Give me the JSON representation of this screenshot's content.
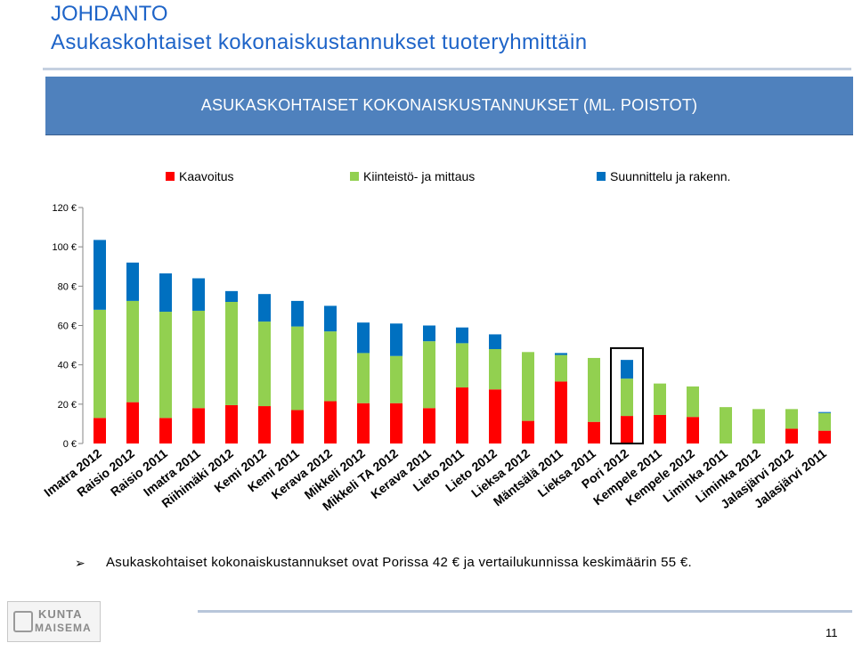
{
  "slide": {
    "title_line1": "JOHDANTO",
    "title_line2": "Asukaskohtaiset kokonaiskustannukset tuoteryhmittäin",
    "bullet": "Asukaskohtaiset kokonaiskustannukset ovat Porissa 42 € ja vertailukunnissa keskimäärin 55 €.",
    "bullet_marker": "➢",
    "logo_text_1": "KUNTA",
    "logo_text_2": "MAISEMA",
    "page_number": "11"
  },
  "chart_data": {
    "type": "bar",
    "stacked": true,
    "title": "ASUKASKOHTAISET KOKONAISKUSTANNUKSET (ML. POISTOT)",
    "categories": [
      "Imatra 2012",
      "Raisio 2012",
      "Raisio 2011",
      "Imatra 2011",
      "Riihimäki 2012",
      "Kemi 2012",
      "Kemi 2011",
      "Kerava 2012",
      "Mikkeli 2012",
      "Mikkeli TA 2012",
      "Kerava 2011",
      "Lieto 2011",
      "Lieto 2012",
      "Lieksa 2012",
      "Mäntsälä 2011",
      "Lieksa 2011",
      "Pori 2012",
      "Kempele 2011",
      "Kempele 2012",
      "Liminka 2011",
      "Liminka 2012",
      "Jalasjärvi 2012",
      "Jalasjärvi 2011"
    ],
    "series": [
      {
        "name": "Kaavoitus",
        "color": "#ff0000",
        "values": [
          13,
          21,
          13,
          18,
          19.5,
          19,
          17,
          21.5,
          20.5,
          20.5,
          18,
          28.5,
          27.5,
          11.5,
          31.5,
          11,
          14,
          14.5,
          13.5,
          0,
          0,
          7.5,
          6.5
        ]
      },
      {
        "name": "Kiinteistö- ja mittaus",
        "color": "#92d050",
        "values": [
          55,
          51.5,
          54,
          49.5,
          52.5,
          43,
          42.5,
          35.5,
          25.5,
          24,
          34,
          22.5,
          20.5,
          35,
          13.5,
          32.5,
          19,
          16,
          15.5,
          18.5,
          17.5,
          10,
          9
        ]
      },
      {
        "name": "Suunnittelu ja rakenn.",
        "color": "#0070c0",
        "values": [
          35.5,
          19.5,
          19.5,
          16.5,
          5.5,
          14,
          13,
          13,
          15.5,
          16.5,
          8,
          8,
          7.5,
          0,
          1,
          0,
          9.5,
          0,
          0,
          0,
          0,
          0,
          0.5
        ]
      }
    ],
    "y_ticks": [
      0,
      20,
      40,
      60,
      80,
      100,
      120
    ],
    "y_tick_labels": [
      "0 €",
      "20 €",
      "40 €",
      "60 €",
      "80 €",
      "100 €",
      "120 €"
    ],
    "ylim": [
      0,
      120
    ],
    "legend_position": "top",
    "grid": false,
    "highlight_category": "Pori 2012"
  }
}
